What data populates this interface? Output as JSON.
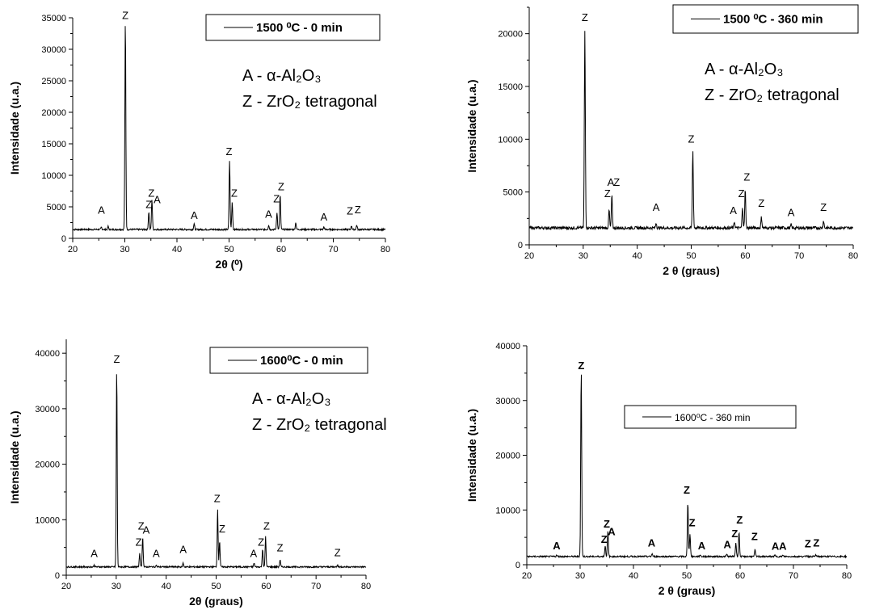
{
  "chart_data": [
    {
      "type": "line",
      "xlabel": "2θ (⁰)",
      "ylabel": "Intensidade (u.a.)",
      "xlim": [
        20,
        80
      ],
      "ylim": [
        0,
        35000
      ],
      "xticks": [
        20,
        30,
        40,
        50,
        60,
        70,
        80
      ],
      "yticks": [
        0,
        5000,
        10000,
        15000,
        20000,
        25000,
        30000,
        35000
      ],
      "legend": "1500 ⁰C - 0 min",
      "legend_position": "top-right",
      "legend_bold": true,
      "annotations": [
        "A - α-Al₂O₃",
        "Z - ZrO₂ tetragonal"
      ],
      "baseline": 1400,
      "peaks": [
        [
          25.5,
          350
        ],
        [
          26.8,
          500
        ],
        [
          30.1,
          33000
        ],
        [
          34.6,
          2800
        ],
        [
          35.2,
          4800
        ],
        [
          43.3,
          900
        ],
        [
          50.1,
          10900
        ],
        [
          50.6,
          4300
        ],
        [
          57.6,
          700
        ],
        [
          59.2,
          2700
        ],
        [
          59.8,
          5500
        ],
        [
          62.8,
          1100
        ],
        [
          68.2,
          400
        ],
        [
          73.5,
          600
        ],
        [
          74.5,
          700
        ]
      ],
      "peak_labels": [
        [
          25.5,
          3900,
          "A"
        ],
        [
          30.1,
          34800,
          "Z"
        ],
        [
          34.6,
          4800,
          "Z"
        ],
        [
          35.1,
          6600,
          "Z"
        ],
        [
          36.2,
          5600,
          "A"
        ],
        [
          43.3,
          3100,
          "A"
        ],
        [
          50.0,
          13200,
          "Z"
        ],
        [
          51.0,
          6600,
          "Z"
        ],
        [
          57.6,
          3300,
          "A"
        ],
        [
          59.1,
          5700,
          "Z"
        ],
        [
          60.0,
          7600,
          "Z"
        ],
        [
          68.2,
          2800,
          "A"
        ],
        [
          73.2,
          3800,
          "Z"
        ],
        [
          74.7,
          4000,
          "Z"
        ]
      ]
    },
    {
      "type": "line",
      "xlabel": "2 θ (graus)",
      "ylabel": "Intensidade (u.a.)",
      "xlim": [
        20,
        80
      ],
      "ylim": [
        0,
        22500
      ],
      "xticks": [
        20,
        30,
        40,
        50,
        60,
        70,
        80
      ],
      "yticks": [
        0,
        5000,
        10000,
        15000,
        20000
      ],
      "legend": "1500 ⁰C - 360 min",
      "legend_position": "top-right",
      "legend_bold": true,
      "annotations": [
        "A - α-Al₂O₃",
        "Z - ZrO₂ tetragonal"
      ],
      "baseline": 1600,
      "peaks": [
        [
          30.3,
          18700
        ],
        [
          34.8,
          1700
        ],
        [
          35.3,
          3100
        ],
        [
          43.5,
          500
        ],
        [
          50.3,
          7300
        ],
        [
          58.0,
          600
        ],
        [
          59.5,
          2000
        ],
        [
          60.0,
          3600
        ],
        [
          63.0,
          1000
        ],
        [
          68.5,
          300
        ],
        [
          74.5,
          700
        ]
      ],
      "peak_labels": [
        [
          30.3,
          21200,
          "Z"
        ],
        [
          34.5,
          4500,
          "Z"
        ],
        [
          35.1,
          5600,
          "A"
        ],
        [
          36.2,
          5600,
          "Z"
        ],
        [
          43.5,
          3200,
          "A"
        ],
        [
          50.0,
          9700,
          "Z"
        ],
        [
          57.8,
          2900,
          "A"
        ],
        [
          59.3,
          4500,
          "Z"
        ],
        [
          60.3,
          6100,
          "Z"
        ],
        [
          63.0,
          3600,
          "Z"
        ],
        [
          68.5,
          2700,
          "A"
        ],
        [
          74.5,
          3200,
          "Z"
        ]
      ]
    },
    {
      "type": "line",
      "xlabel": "2θ (graus)",
      "ylabel": "Intensidade (u.a.)",
      "xlim": [
        20,
        80
      ],
      "ylim": [
        0,
        42500
      ],
      "xticks": [
        20,
        30,
        40,
        50,
        60,
        70,
        80
      ],
      "yticks": [
        0,
        10000,
        20000,
        30000,
        40000
      ],
      "legend": "1600⁰C - 0 min",
      "legend_position": "top-right",
      "legend_bold": true,
      "annotations": [
        "A - α-Al₂O₃",
        "Z - ZrO₂ tetragonal"
      ],
      "baseline": 1500,
      "peaks": [
        [
          25.6,
          300
        ],
        [
          30.1,
          35500
        ],
        [
          34.7,
          2500
        ],
        [
          35.3,
          5500
        ],
        [
          38.0,
          300
        ],
        [
          43.4,
          700
        ],
        [
          50.3,
          10500
        ],
        [
          50.7,
          4700
        ],
        [
          57.6,
          700
        ],
        [
          59.3,
          3300
        ],
        [
          59.9,
          5500
        ],
        [
          62.8,
          1300
        ],
        [
          74.3,
          400
        ]
      ],
      "peak_labels": [
        [
          25.6,
          3300,
          "A"
        ],
        [
          30.1,
          38300,
          "Z"
        ],
        [
          34.5,
          5300,
          "Z"
        ],
        [
          35.0,
          8200,
          "Z"
        ],
        [
          36.0,
          7500,
          "A"
        ],
        [
          38.0,
          3300,
          "A"
        ],
        [
          43.4,
          4000,
          "A"
        ],
        [
          50.2,
          13200,
          "Z"
        ],
        [
          51.2,
          7700,
          "Z"
        ],
        [
          57.5,
          3300,
          "A"
        ],
        [
          59.0,
          5300,
          "Z"
        ],
        [
          60.1,
          8200,
          "Z"
        ],
        [
          62.8,
          4300,
          "Z"
        ],
        [
          74.3,
          3400,
          "Z"
        ]
      ]
    },
    {
      "type": "line",
      "xlabel": "2 θ (graus)",
      "ylabel": "Intensidade (u.a.)",
      "xlim": [
        20,
        80
      ],
      "ylim": [
        0,
        40000
      ],
      "xticks": [
        20,
        30,
        40,
        50,
        60,
        70,
        80
      ],
      "yticks": [
        0,
        10000,
        20000,
        30000,
        40000
      ],
      "legend": "1600⁰C - 360 min",
      "legend_position": "top-right",
      "legend_bold": false,
      "annotations": [],
      "baseline": 1500,
      "peaks": [
        [
          25.6,
          250
        ],
        [
          30.2,
          34000
        ],
        [
          34.7,
          2000
        ],
        [
          35.2,
          4600
        ],
        [
          43.5,
          500
        ],
        [
          50.2,
          10000
        ],
        [
          50.6,
          4000
        ],
        [
          52.5,
          300
        ],
        [
          57.5,
          400
        ],
        [
          59.2,
          2500
        ],
        [
          59.8,
          4500
        ],
        [
          62.8,
          1200
        ],
        [
          66.5,
          200
        ],
        [
          68.0,
          200
        ],
        [
          72.5,
          200
        ],
        [
          74.2,
          300
        ]
      ],
      "peak_labels": [
        [
          25.6,
          2800,
          "A"
        ],
        [
          30.2,
          35700,
          "Z"
        ],
        [
          34.5,
          4000,
          "Z"
        ],
        [
          35.0,
          6800,
          "Z"
        ],
        [
          35.9,
          5400,
          "A"
        ],
        [
          43.4,
          3300,
          "A"
        ],
        [
          50.0,
          13000,
          "Z"
        ],
        [
          51.0,
          7000,
          "Z"
        ],
        [
          52.8,
          2800,
          "A"
        ],
        [
          57.6,
          3000,
          "A"
        ],
        [
          59.0,
          5000,
          "Z"
        ],
        [
          59.9,
          7500,
          "Z"
        ],
        [
          62.7,
          4500,
          "Z"
        ],
        [
          66.6,
          2700,
          "A"
        ],
        [
          68.0,
          2700,
          "A"
        ],
        [
          72.7,
          3200,
          "Z"
        ],
        [
          74.3,
          3300,
          "Z"
        ]
      ]
    }
  ]
}
